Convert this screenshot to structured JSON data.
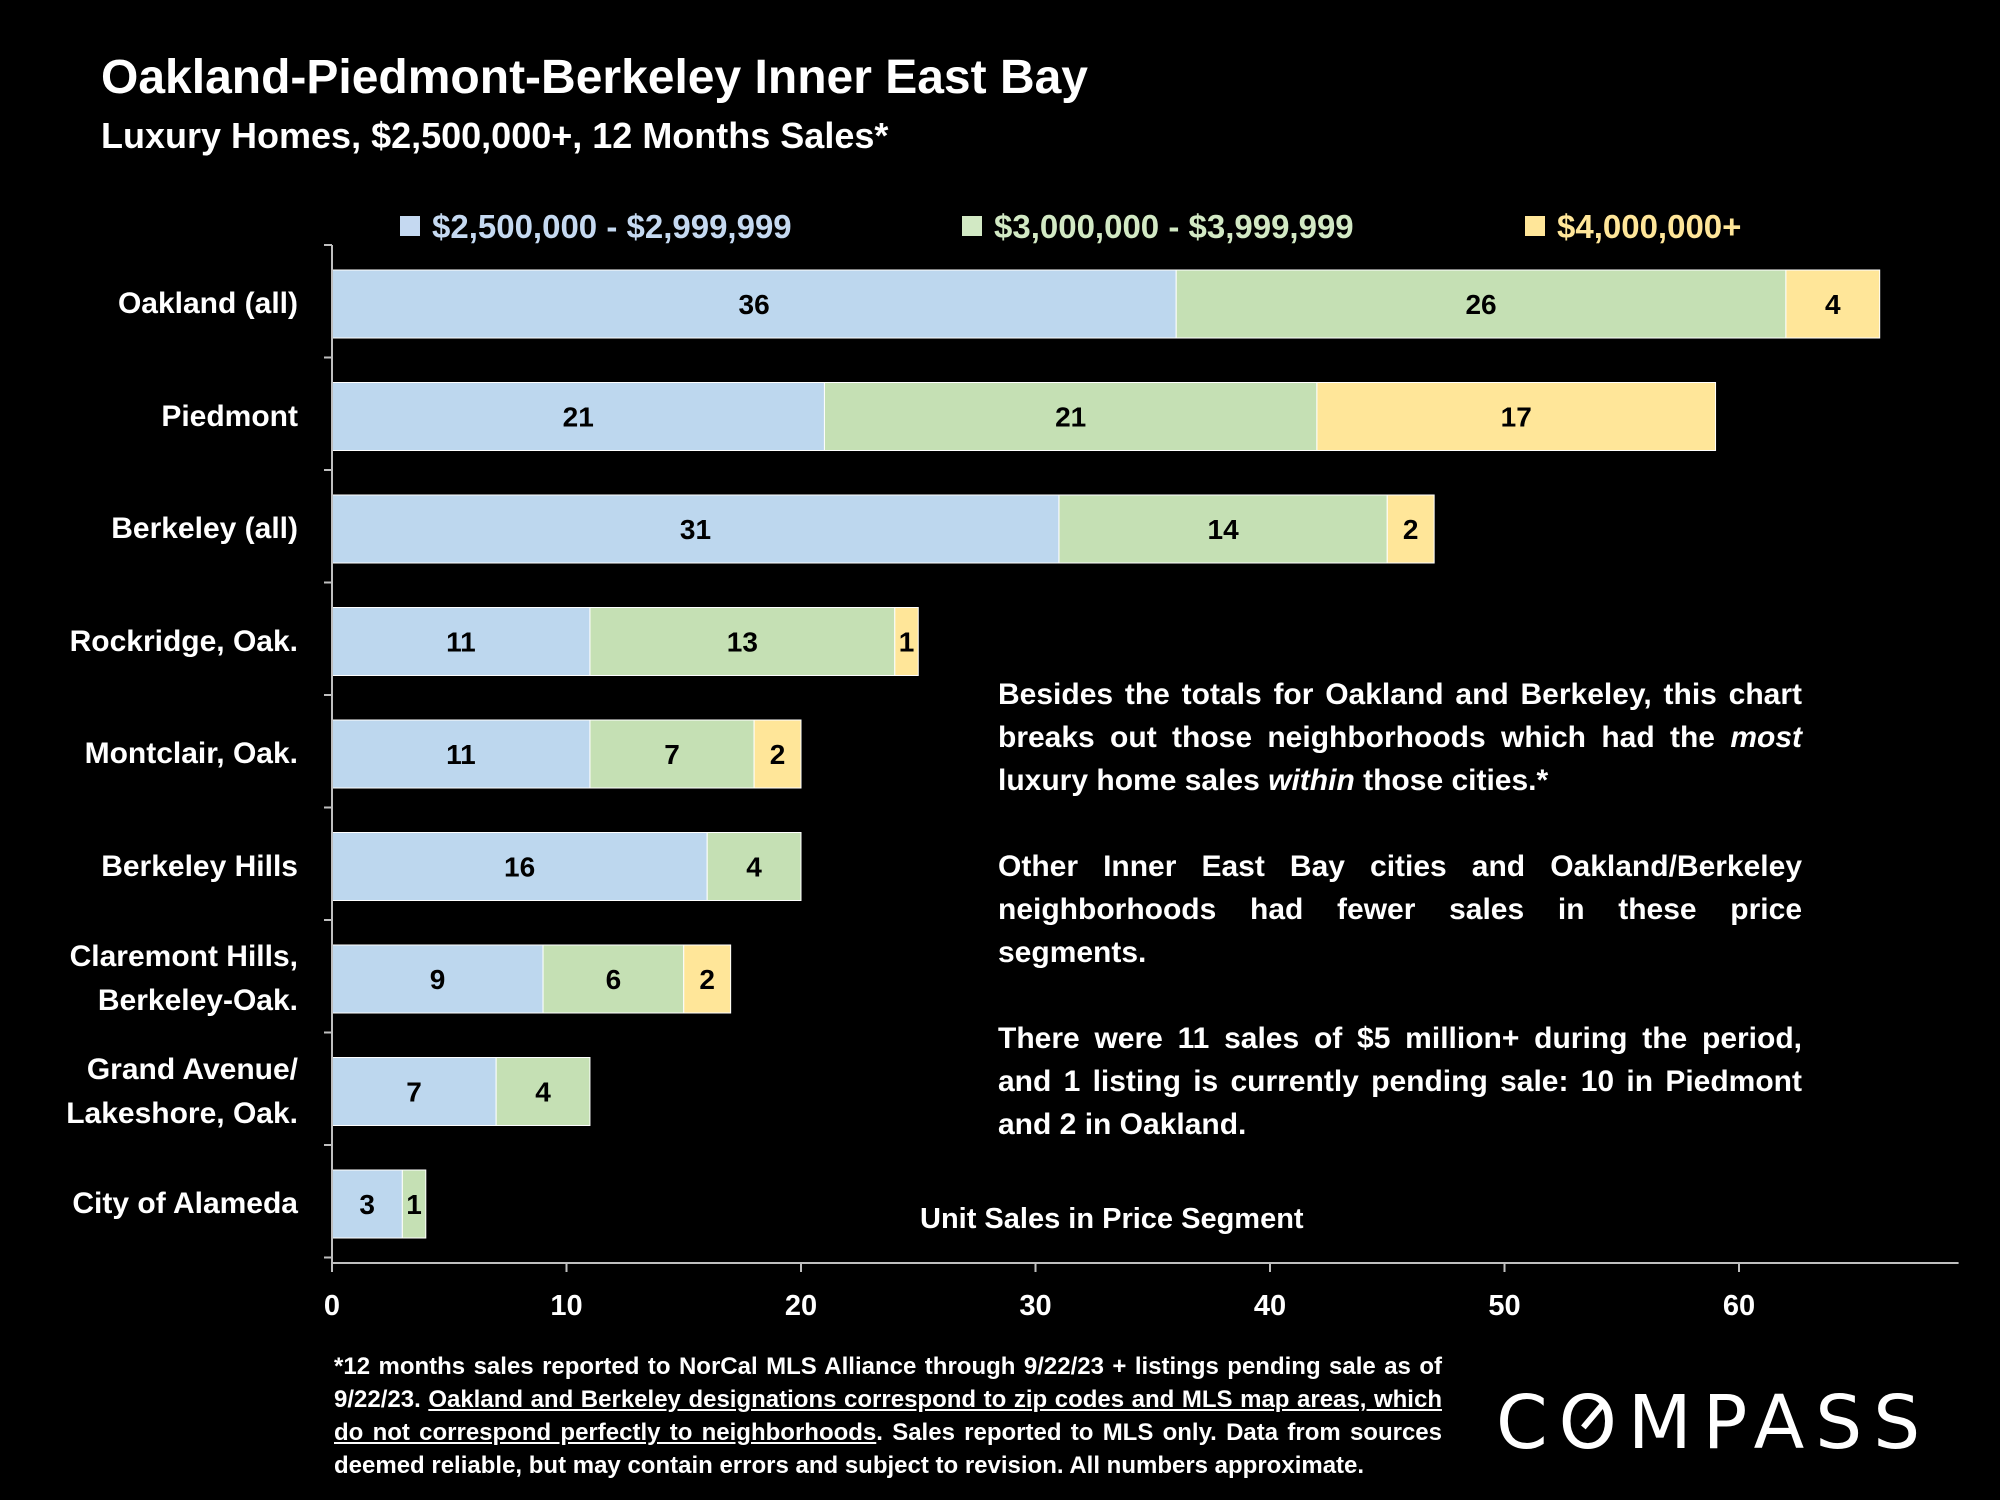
{
  "chart_data": {
    "type": "bar",
    "orientation": "horizontal",
    "stacked": true,
    "title": "Oakland-Piedmont-Berkeley Inner East Bay",
    "subtitle": "Luxury Homes, $2,500,000+, 12 Months Sales*",
    "xlabel": "Unit Sales in Price Segment",
    "xlim": [
      0,
      68
    ],
    "xticks": [
      0,
      10,
      20,
      30,
      40,
      50,
      60
    ],
    "grid": false,
    "legend_position": "top",
    "categories": [
      [
        "Oakland (all)"
      ],
      [
        "Piedmont"
      ],
      [
        "Berkeley (all)"
      ],
      [
        "Rockridge, Oak."
      ],
      [
        "Montclair, Oak."
      ],
      [
        "Berkeley Hills"
      ],
      [
        "Claremont Hills,",
        "Berkeley-Oak."
      ],
      [
        "Grand Avenue/",
        "Lakeshore, Oak."
      ],
      [
        "City of Alameda"
      ]
    ],
    "series": [
      {
        "name": "$2,500,000 - $2,999,999",
        "color": "#bdd7ee",
        "legend_color": "#c5d9f1",
        "values": [
          36,
          21,
          31,
          11,
          11,
          16,
          9,
          7,
          3
        ]
      },
      {
        "name": "$3,000,000 - $3,999,999",
        "color": "#c5e0b4",
        "legend_color": "#d2e9c4",
        "values": [
          26,
          21,
          14,
          13,
          7,
          4,
          6,
          4,
          1
        ]
      },
      {
        "name": "$4,000,000+",
        "color": "#ffe699",
        "legend_color": "#ffe699",
        "values": [
          4,
          17,
          2,
          1,
          2,
          null,
          2,
          null,
          null
        ]
      }
    ]
  },
  "annotation": {
    "p1_a": "Besides the totals for Oakland and Berkeley, this chart breaks out those neighborhoods which had the ",
    "p1_em1": "most",
    "p1_b": " luxury home sales ",
    "p1_em2": "within",
    "p1_c": " those cities.*",
    "p2": "Other Inner East Bay cities and Oakland/Berkeley neighborhoods had fewer sales in these price segments.",
    "p3": "There were 11 sales of $5 million+ during the period, and 1 listing is currently pending sale: 10 in Piedmont and 2 in Oakland."
  },
  "footnote": {
    "part1": "*12 months sales reported to NorCal MLS Alliance through 9/22/23 + listings pending sale as of 9/22/23. ",
    "underlined": "Oakland and Berkeley designations correspond to zip codes and MLS map areas, which do not correspond perfectly to neighborhoods",
    "part2": ". Sales reported to MLS only. Data from sources deemed reliable, but may contain errors and subject to revision. All numbers approximate."
  },
  "logo": {
    "text": "COMPASS"
  }
}
